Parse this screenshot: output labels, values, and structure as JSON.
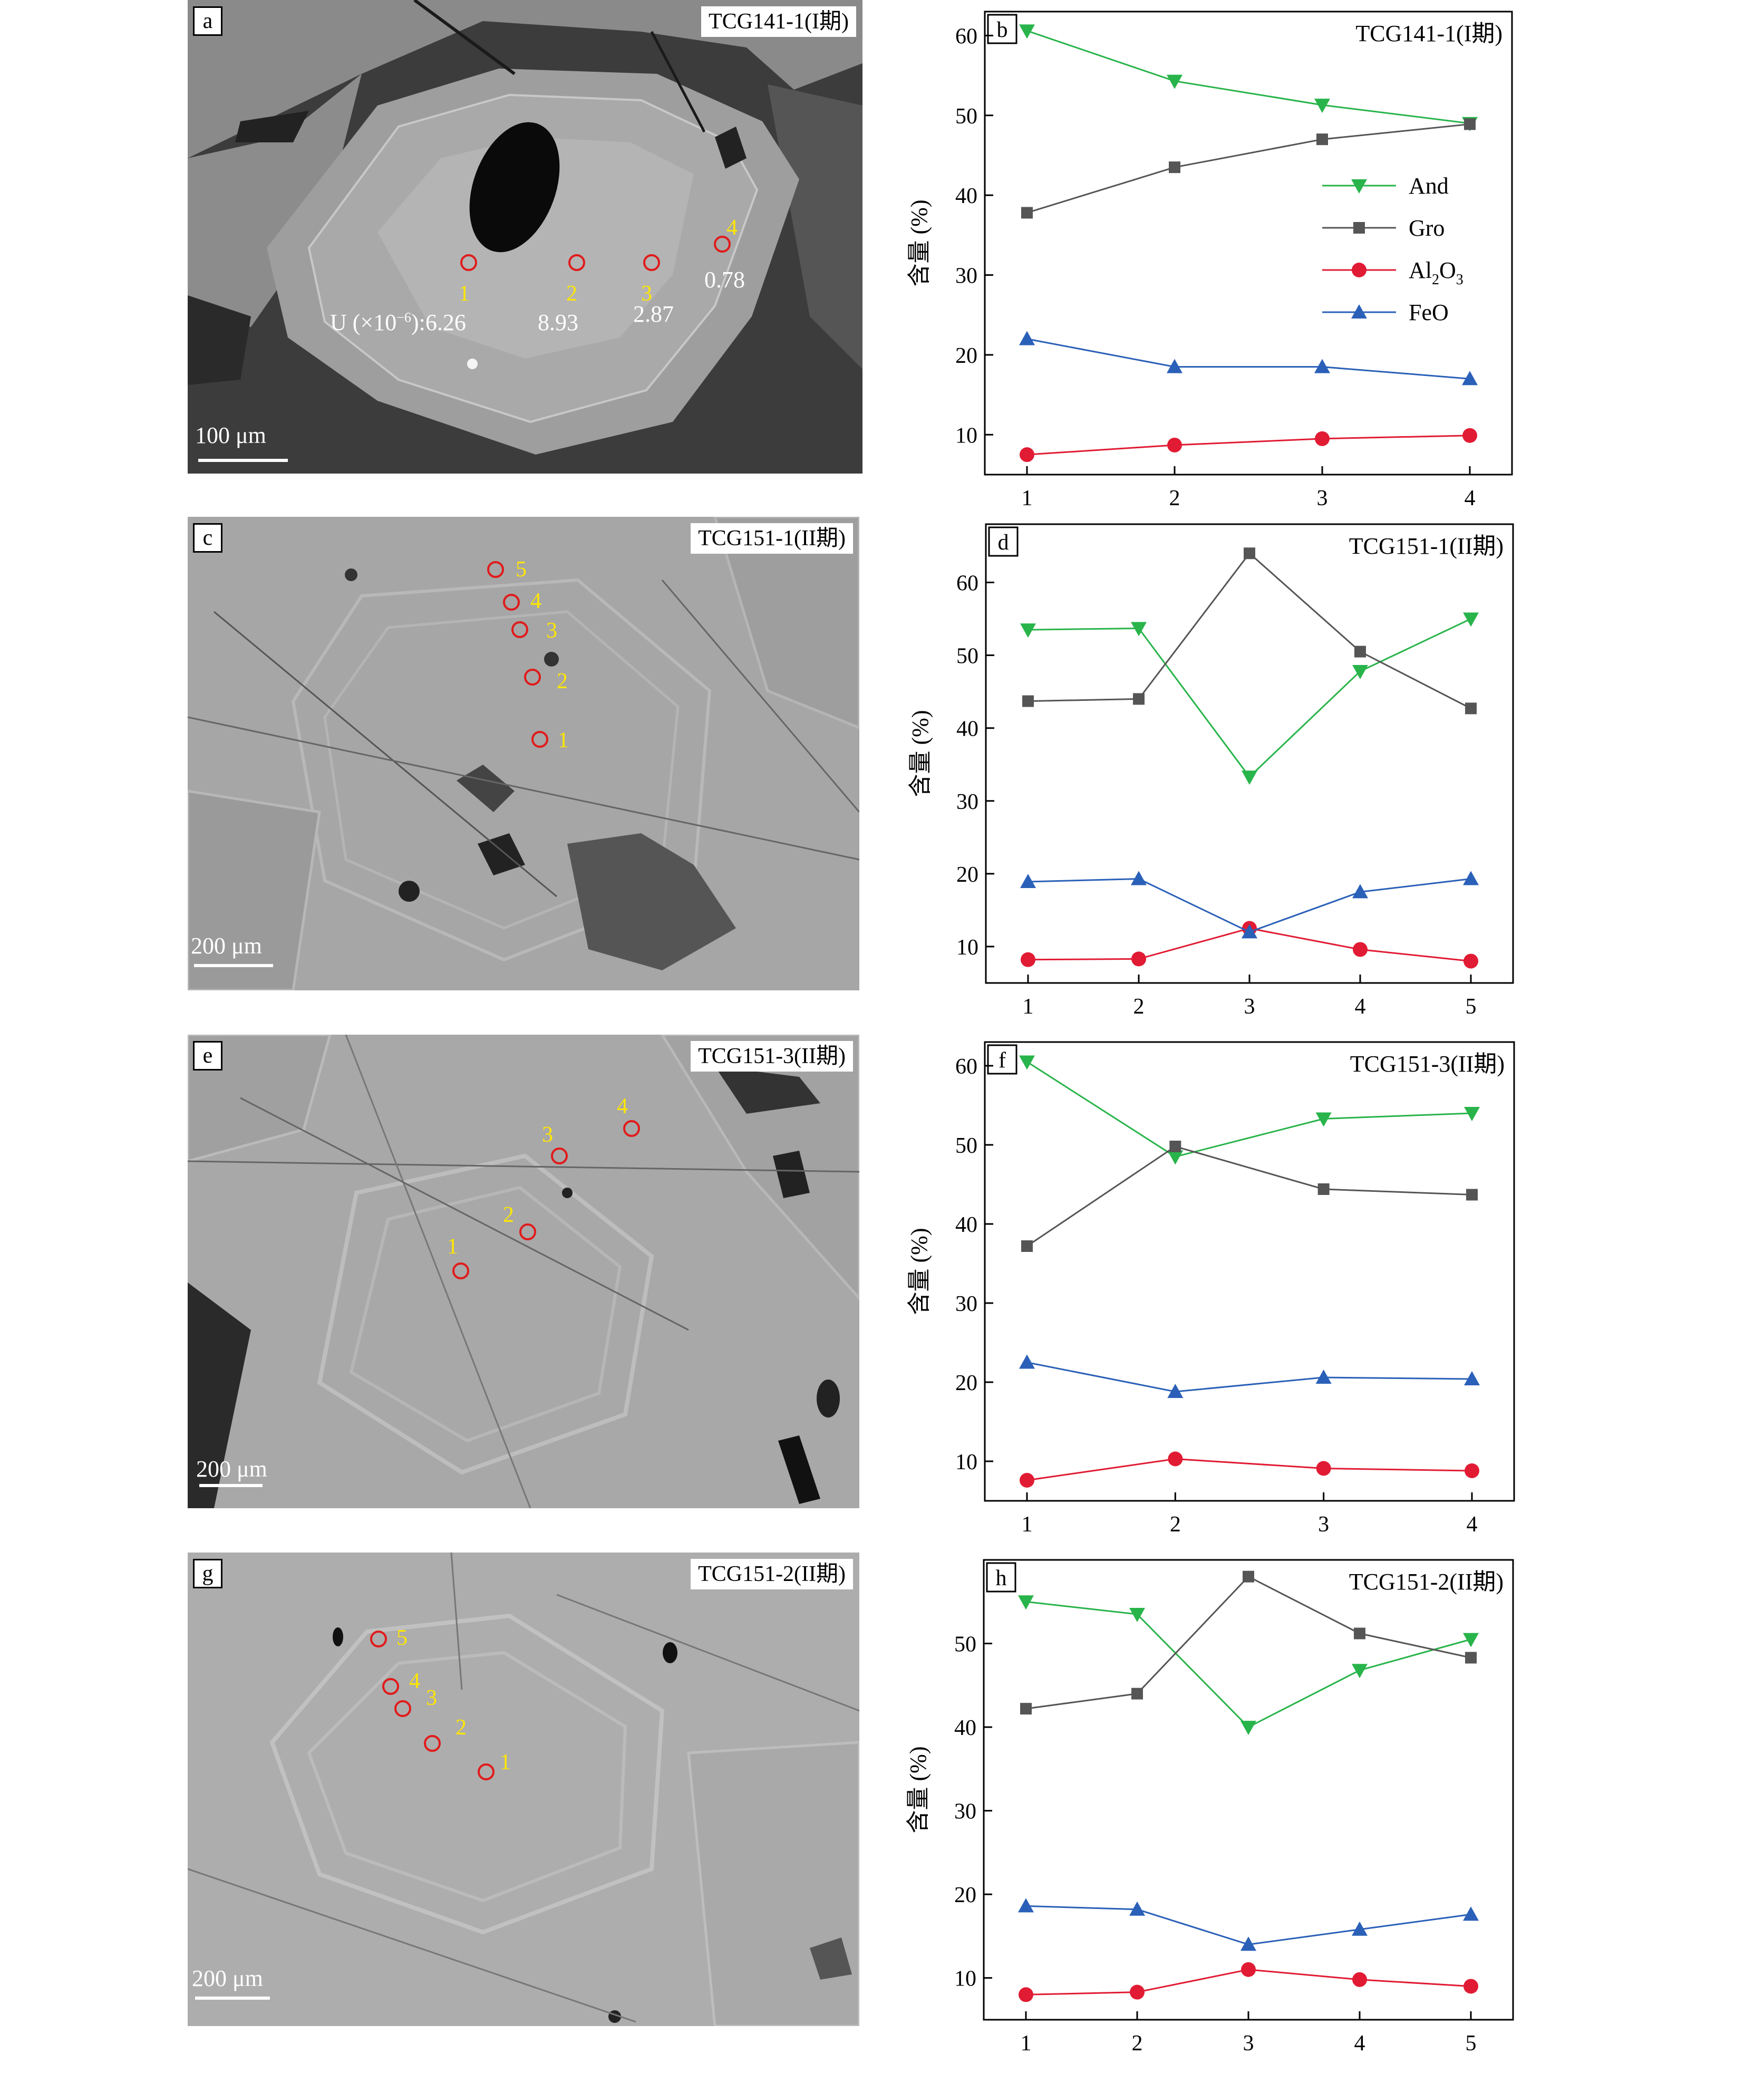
{
  "colors": {
    "And": "#28b44a",
    "Gro": "#555555",
    "Al2O3": "#e11b33",
    "FeO": "#2a60b8",
    "spot": "#e11b1b",
    "spot_number": "#ffe600"
  },
  "u_prefix": "U (×10",
  "u_exp": "−6",
  "u_suffix": "):",
  "images": [
    {
      "label": "a",
      "sample": "TCG141-1(I期)",
      "scale": "100 μm",
      "spots": [
        "1",
        "2",
        "3",
        "4"
      ],
      "u_values": [
        "6.26",
        "8.93",
        "2.87",
        "0.78"
      ]
    },
    {
      "label": "c",
      "sample": "TCG151-1(II期)",
      "scale": "200 μm",
      "spots": [
        "1",
        "2",
        "3",
        "4",
        "5"
      ]
    },
    {
      "label": "e",
      "sample": "TCG151-3(II期)",
      "scale": "200 μm",
      "spots": [
        "1",
        "2",
        "3",
        "4"
      ]
    },
    {
      "label": "g",
      "sample": "TCG151-2(II期)",
      "scale": "200 μm",
      "spots": [
        "1",
        "2",
        "3",
        "4",
        "5"
      ]
    }
  ],
  "legend": [
    {
      "key": "And",
      "name": "And",
      "marker": "triangle-down"
    },
    {
      "key": "Gro",
      "name": "Gro",
      "marker": "square"
    },
    {
      "key": "Al2O3",
      "name": "Al2O3",
      "name_main": "Al",
      "sub1": "2",
      "mid": "O",
      "sub2": "3",
      "marker": "circle"
    },
    {
      "key": "FeO",
      "name": "FeO",
      "marker": "triangle-up"
    }
  ],
  "chart_data": [
    {
      "label": "b",
      "type": "line",
      "title": "TCG141-1(I期)",
      "ylabel": "含量 (%)",
      "xlabel": "",
      "x": [
        1,
        2,
        3,
        4
      ],
      "ylim": [
        5,
        63
      ],
      "yticks": [
        10,
        20,
        30,
        40,
        50,
        60
      ],
      "grid": false,
      "legend": "right",
      "series": [
        {
          "key": "And",
          "name": "And",
          "values": [
            60.6,
            54.3,
            51.3,
            49.0
          ]
        },
        {
          "key": "Gro",
          "name": "Gro",
          "values": [
            37.8,
            43.5,
            47.0,
            48.9
          ]
        },
        {
          "key": "Al2O3",
          "name": "Al2O3",
          "values": [
            7.5,
            8.7,
            9.5,
            9.9
          ]
        },
        {
          "key": "FeO",
          "name": "FeO",
          "values": [
            22.0,
            18.5,
            18.5,
            17.0
          ]
        }
      ]
    },
    {
      "label": "d",
      "type": "line",
      "title": "TCG151-1(II期)",
      "ylabel": "含量 (%)",
      "xlabel": "",
      "x": [
        1,
        2,
        3,
        4,
        5
      ],
      "ylim": [
        5,
        68
      ],
      "yticks": [
        10,
        20,
        30,
        40,
        50,
        60
      ],
      "grid": false,
      "series": [
        {
          "key": "And",
          "name": "And",
          "values": [
            53.5,
            53.7,
            33.3,
            47.8,
            55.0
          ]
        },
        {
          "key": "Gro",
          "name": "Gro",
          "values": [
            43.7,
            44.0,
            64.0,
            50.5,
            42.7
          ]
        },
        {
          "key": "Al2O3",
          "name": "Al2O3",
          "values": [
            8.2,
            8.3,
            12.5,
            9.6,
            8.0
          ]
        },
        {
          "key": "FeO",
          "name": "FeO",
          "values": [
            18.9,
            19.3,
            12.0,
            17.5,
            19.3
          ]
        }
      ]
    },
    {
      "label": "f",
      "type": "line",
      "title": "TCG151-3(II期)",
      "ylabel": "含量 (%)",
      "xlabel": "",
      "x": [
        1,
        2,
        3,
        4
      ],
      "ylim": [
        5,
        63
      ],
      "yticks": [
        10,
        20,
        30,
        40,
        50,
        60
      ],
      "grid": false,
      "series": [
        {
          "key": "And",
          "name": "And",
          "values": [
            60.5,
            48.5,
            53.3,
            54.0
          ]
        },
        {
          "key": "Gro",
          "name": "Gro",
          "values": [
            37.2,
            49.8,
            44.4,
            43.7
          ]
        },
        {
          "key": "Al2O3",
          "name": "Al2O3",
          "values": [
            7.6,
            10.3,
            9.1,
            8.8
          ]
        },
        {
          "key": "FeO",
          "name": "FeO",
          "values": [
            22.5,
            18.8,
            20.6,
            20.4
          ]
        }
      ]
    },
    {
      "label": "h",
      "type": "line",
      "title": "TCG151-2(II期)",
      "ylabel": "含量 (%)",
      "xlabel": "",
      "x": [
        1,
        2,
        3,
        4,
        5
      ],
      "ylim": [
        5,
        60
      ],
      "yticks": [
        10,
        20,
        30,
        40,
        50
      ],
      "grid": false,
      "series": [
        {
          "key": "And",
          "name": "And",
          "values": [
            55.0,
            53.5,
            40.0,
            46.8,
            50.5
          ]
        },
        {
          "key": "Gro",
          "name": "Gro",
          "values": [
            42.2,
            44.0,
            58.0,
            51.2,
            48.3
          ]
        },
        {
          "key": "Al2O3",
          "name": "Al2O3",
          "values": [
            8.0,
            8.3,
            11.0,
            9.8,
            9.0
          ]
        },
        {
          "key": "FeO",
          "name": "FeO",
          "values": [
            18.6,
            18.2,
            14.0,
            15.8,
            17.6
          ]
        }
      ]
    }
  ]
}
